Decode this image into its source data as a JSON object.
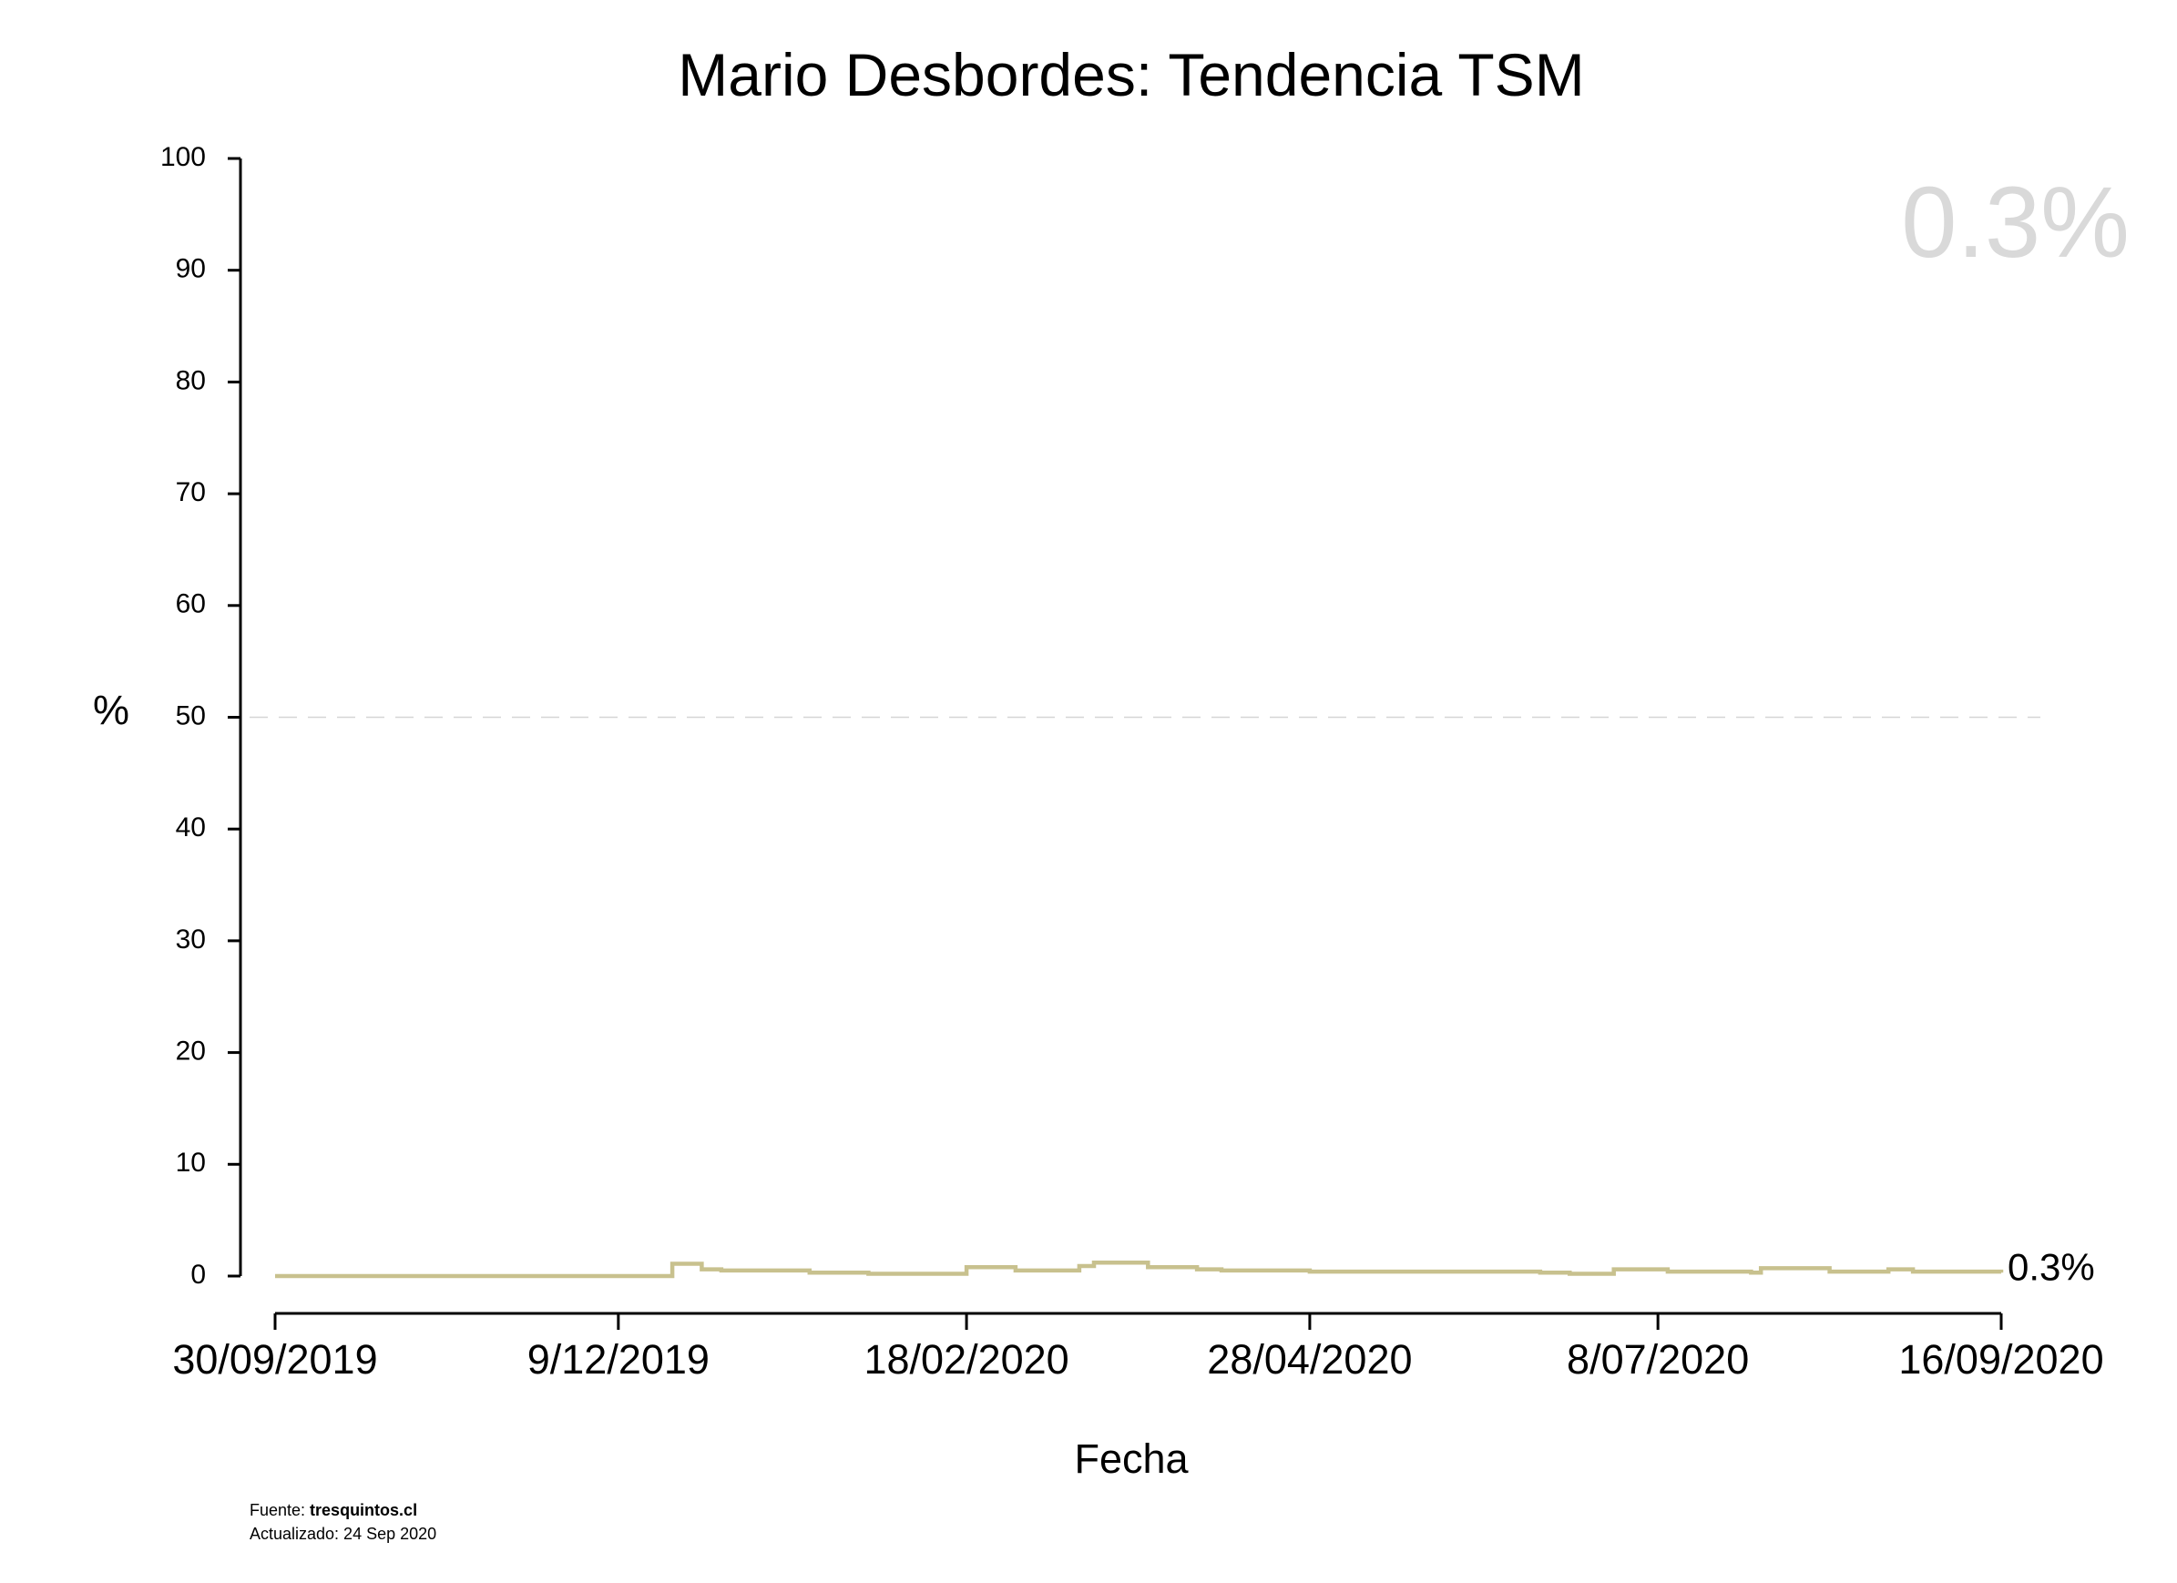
{
  "chart_data": {
    "type": "line",
    "title": "Mario Desbordes: Tendencia TSM",
    "xlabel": "Fecha",
    "ylabel": "%",
    "x_range": [
      "2019-09-30",
      "2020-09-16"
    ],
    "x_tick_labels": [
      "30/09/2019",
      "9/12/2019",
      "18/02/2020",
      "28/04/2020",
      "8/07/2020",
      "16/09/2020"
    ],
    "x_tick_dates": [
      "2019-09-30",
      "2019-12-09",
      "2020-02-18",
      "2020-04-28",
      "2020-07-08",
      "2020-09-16"
    ],
    "ylim": [
      0,
      100
    ],
    "y_ticks": [
      0,
      10,
      20,
      30,
      40,
      50,
      60,
      70,
      80,
      90,
      100
    ],
    "reference_line": 50,
    "grid": false,
    "step": true,
    "series_color": "#c8c18e",
    "points": [
      {
        "x": "2019-09-30",
        "y": 0.0
      },
      {
        "x": "2019-12-20",
        "y": 1.1
      },
      {
        "x": "2019-12-26",
        "y": 0.6
      },
      {
        "x": "2019-12-30",
        "y": 0.5
      },
      {
        "x": "2020-01-17",
        "y": 0.3
      },
      {
        "x": "2020-01-29",
        "y": 0.2
      },
      {
        "x": "2020-02-18",
        "y": 0.8
      },
      {
        "x": "2020-02-28",
        "y": 0.5
      },
      {
        "x": "2020-03-12",
        "y": 0.9
      },
      {
        "x": "2020-03-15",
        "y": 1.2
      },
      {
        "x": "2020-03-26",
        "y": 0.8
      },
      {
        "x": "2020-04-05",
        "y": 0.6
      },
      {
        "x": "2020-04-10",
        "y": 0.5
      },
      {
        "x": "2020-04-28",
        "y": 0.4
      },
      {
        "x": "2020-06-14",
        "y": 0.3
      },
      {
        "x": "2020-06-20",
        "y": 0.2
      },
      {
        "x": "2020-06-29",
        "y": 0.6
      },
      {
        "x": "2020-07-10",
        "y": 0.4
      },
      {
        "x": "2020-07-27",
        "y": 0.3
      },
      {
        "x": "2020-07-29",
        "y": 0.7
      },
      {
        "x": "2020-08-12",
        "y": 0.4
      },
      {
        "x": "2020-08-24",
        "y": 0.6
      },
      {
        "x": "2020-08-29",
        "y": 0.4
      },
      {
        "x": "2020-09-16",
        "y": 0.3
      }
    ],
    "current_value_label": "0.3%",
    "end_label": "0.3%"
  },
  "footer": {
    "source_prefix": "Fuente: ",
    "source_site": "tresquintos.cl",
    "updated": "Actualizado: 24 Sep 2020"
  }
}
